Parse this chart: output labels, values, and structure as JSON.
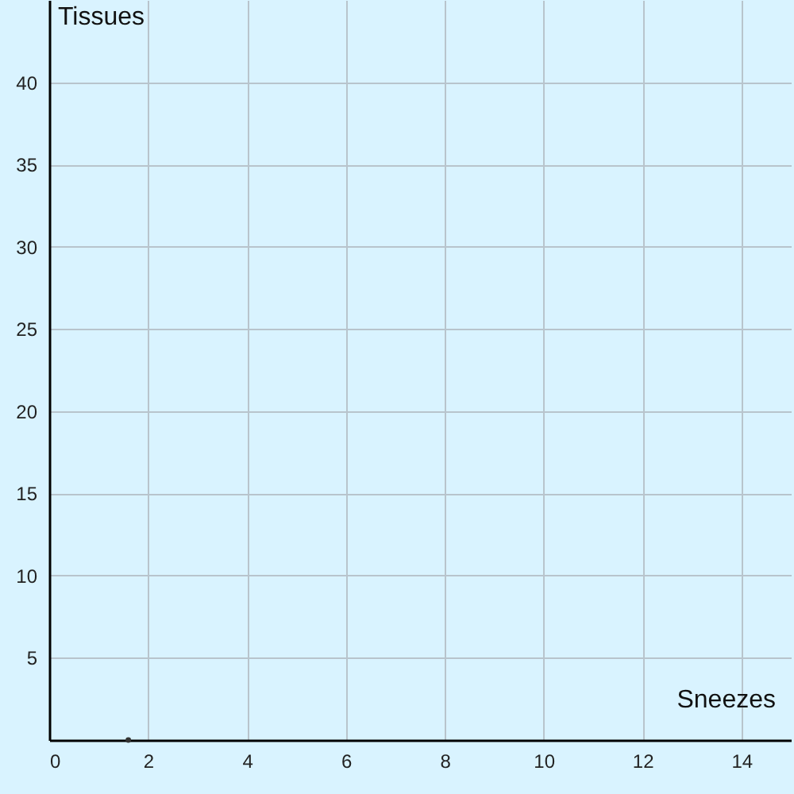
{
  "chart_data": {
    "type": "scatter",
    "xlabel": "Sneezes",
    "ylabel": "Tissues",
    "x": [
      1.6
    ],
    "values": [
      0
    ],
    "color": "#333333",
    "xlim": [
      0,
      15
    ],
    "ylim": [
      0,
      45
    ],
    "xticks": [
      0,
      2,
      4,
      6,
      8,
      10,
      12,
      14
    ],
    "yticks": [
      5,
      10,
      15,
      20,
      25,
      30,
      35,
      40
    ],
    "grid": true
  }
}
